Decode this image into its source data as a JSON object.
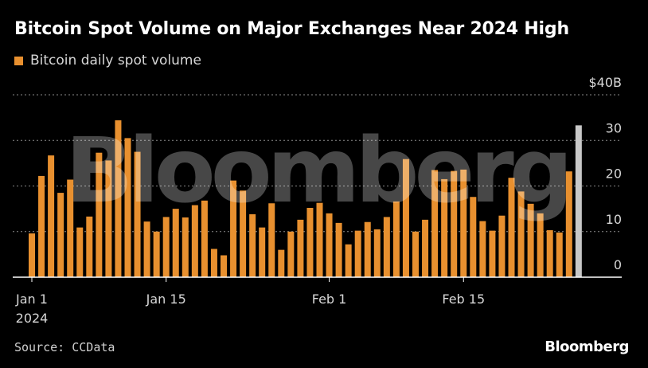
{
  "title": "Bitcoin Spot Volume on Major Exchanges Near 2024 High",
  "source": "Source: CCData",
  "brand": "Bloomberg",
  "watermark": "Bloomberg",
  "colors": {
    "bar": "#e8902f",
    "highlight": "#c8c8c8",
    "grid": "#8a8a8a",
    "axis": "#ffffff",
    "background": "#000000"
  },
  "chart_data": {
    "type": "bar",
    "title": "Bitcoin Spot Volume on Major Exchanges Near 2024 High",
    "xlabel": "",
    "ylabel": "",
    "legend": {
      "entries": [
        "Bitcoin daily spot volume"
      ],
      "placement": "top-left"
    },
    "y_unit_label": "$40B",
    "ylim": [
      0,
      40
    ],
    "y_ticks": [
      0,
      10,
      20,
      30,
      40
    ],
    "y_tick_labels": [
      "0",
      "10",
      "20",
      "30",
      "$40B"
    ],
    "grid": true,
    "x_tick_labels": [
      {
        "index": 0,
        "lines": [
          "Jan 1",
          "2024"
        ]
      },
      {
        "index": 14,
        "lines": [
          "Jan 15"
        ]
      },
      {
        "index": 31,
        "lines": [
          "Feb 1"
        ]
      },
      {
        "index": 45,
        "lines": [
          "Feb 15"
        ]
      }
    ],
    "categories": [
      "2024-01-01",
      "2024-01-02",
      "2024-01-03",
      "2024-01-04",
      "2024-01-05",
      "2024-01-06",
      "2024-01-07",
      "2024-01-08",
      "2024-01-09",
      "2024-01-10",
      "2024-01-11",
      "2024-01-12",
      "2024-01-13",
      "2024-01-14",
      "2024-01-15",
      "2024-01-16",
      "2024-01-17",
      "2024-01-18",
      "2024-01-19",
      "2024-01-20",
      "2024-01-21",
      "2024-01-22",
      "2024-01-23",
      "2024-01-24",
      "2024-01-25",
      "2024-01-26",
      "2024-01-27",
      "2024-01-28",
      "2024-01-29",
      "2024-01-30",
      "2024-01-31",
      "2024-02-01",
      "2024-02-02",
      "2024-02-03",
      "2024-02-04",
      "2024-02-05",
      "2024-02-06",
      "2024-02-07",
      "2024-02-08",
      "2024-02-09",
      "2024-02-10",
      "2024-02-11",
      "2024-02-12",
      "2024-02-13",
      "2024-02-14",
      "2024-02-15",
      "2024-02-16",
      "2024-02-17",
      "2024-02-18",
      "2024-02-19",
      "2024-02-20",
      "2024-02-21",
      "2024-02-22",
      "2024-02-23",
      "2024-02-24",
      "2024-02-25",
      "2024-02-26",
      "2024-02-27"
    ],
    "series": [
      {
        "name": "Bitcoin daily spot volume",
        "values": [
          9.6,
          22.2,
          26.7,
          18.5,
          21.4,
          10.9,
          13.3,
          27.3,
          25.6,
          34.4,
          30.5,
          27.5,
          12.2,
          10.0,
          13.2,
          15.0,
          13.1,
          15.8,
          16.8,
          6.2,
          4.8,
          21.2,
          19.0,
          13.8,
          10.9,
          16.2,
          6.0,
          10.0,
          12.6,
          15.2,
          16.3,
          14.0,
          11.9,
          7.2,
          10.2,
          12.1,
          10.5,
          13.2,
          16.6,
          25.9,
          10.0,
          12.6,
          23.5,
          21.5,
          23.3,
          23.6,
          17.6,
          12.3,
          10.2,
          13.5,
          21.8,
          18.8,
          16.1,
          14.0,
          10.3,
          9.8,
          23.2,
          33.3
        ]
      }
    ],
    "highlight_last": true
  }
}
